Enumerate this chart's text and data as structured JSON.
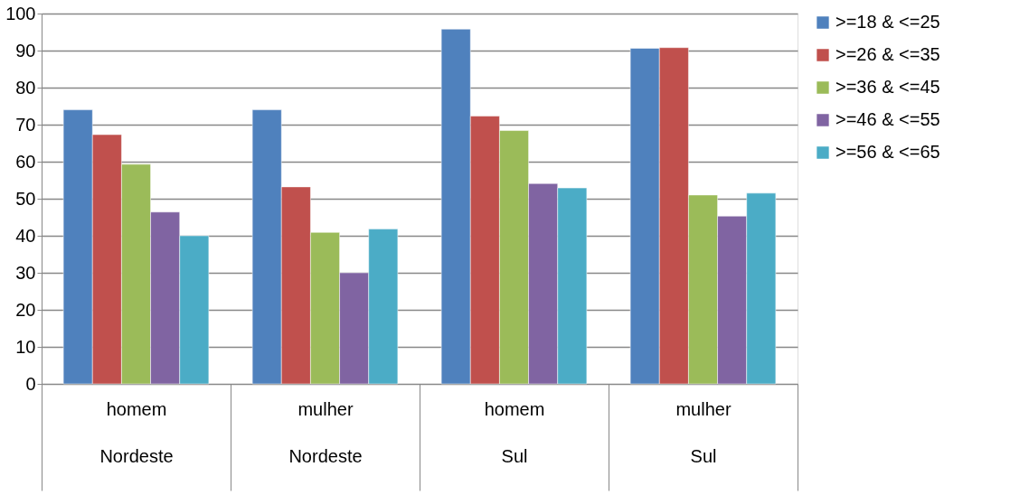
{
  "chart_data": {
    "type": "bar",
    "categories": [
      "homem\nNordeste",
      "mulher\nNordeste",
      "homem\nSul",
      "mulher\nSul"
    ],
    "series": [
      {
        "name": ">=18 & <=25",
        "color": "#4f81bd",
        "values": [
          74,
          74,
          95.8,
          90.6
        ]
      },
      {
        "name": ">=26 & <=35",
        "color": "#c0504d",
        "values": [
          67.3,
          53.2,
          72.3,
          90.8
        ]
      },
      {
        "name": ">=36 & <=45",
        "color": "#9bbb59",
        "values": [
          59.3,
          40.9,
          68.4,
          51.0
        ]
      },
      {
        "name": ">=46 & <=55",
        "color": "#8064a2",
        "values": [
          46.4,
          30.0,
          54.1,
          45.3
        ]
      },
      {
        "name": ">=56 & <=65",
        "color": "#4bacc6",
        "values": [
          40.0,
          41.8,
          52.9,
          51.5
        ]
      }
    ],
    "ylim": [
      0,
      100
    ],
    "yticks": [
      0,
      10,
      20,
      30,
      40,
      50,
      60,
      70,
      80,
      90,
      100
    ],
    "grid": "y",
    "legend": "right"
  }
}
